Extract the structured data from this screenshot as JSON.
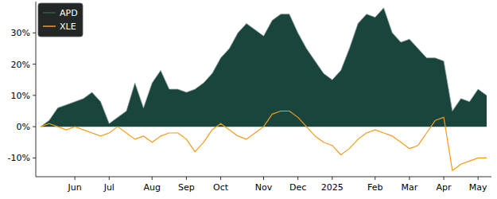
{
  "chart_data": {
    "type": "line",
    "categories": [
      null,
      null,
      null,
      null,
      "Jun",
      null,
      null,
      null,
      "Jul",
      null,
      null,
      null,
      null,
      "Aug",
      null,
      null,
      null,
      "Sep",
      null,
      null,
      null,
      "Oct",
      null,
      null,
      null,
      null,
      "Nov",
      null,
      null,
      null,
      "Dec",
      null,
      null,
      null,
      "2025",
      null,
      null,
      null,
      null,
      "Feb",
      null,
      null,
      null,
      "Mar",
      null,
      null,
      null,
      "Apr",
      null,
      null,
      null,
      "May",
      null
    ],
    "series": [
      {
        "name": "APD",
        "type": "area",
        "color": "#0e3b33",
        "values": [
          0,
          2,
          6,
          7,
          8,
          9,
          11,
          8,
          1,
          3,
          5,
          14,
          6,
          14,
          18,
          12,
          12,
          11,
          12,
          14,
          17,
          22,
          25,
          30,
          33,
          31,
          29,
          34,
          36,
          36,
          30,
          25,
          21,
          17,
          15,
          18,
          25,
          33,
          36,
          35,
          38,
          30,
          27,
          28,
          25,
          22,
          22,
          21,
          5,
          9,
          8,
          12,
          10
        ]
      },
      {
        "name": "XLE",
        "type": "line",
        "color": "#f59b1a",
        "values": [
          0,
          1,
          0,
          -1,
          0,
          -1,
          -2,
          -3,
          -2,
          0,
          -2,
          -4,
          -3,
          -5,
          -3,
          -2,
          -2,
          -4,
          -8,
          -5,
          -1,
          1,
          -1,
          -3,
          -4,
          -2,
          0,
          4,
          5,
          5,
          3,
          0,
          -3,
          -5,
          -6,
          -9,
          -7,
          -4,
          -2,
          -1,
          -2,
          -3,
          -5,
          -7,
          -6,
          -2,
          2,
          3,
          -14,
          -12,
          -11,
          -10,
          -10
        ]
      }
    ],
    "ylim": [
      -16,
      40
    ],
    "yticks": [
      {
        "value": -10,
        "label": "-10%"
      },
      {
        "value": 0,
        "label": "0%"
      },
      {
        "value": 10,
        "label": "10%"
      },
      {
        "value": 20,
        "label": "20%"
      },
      {
        "value": 30,
        "label": "30%"
      }
    ],
    "legend": "upper left"
  }
}
